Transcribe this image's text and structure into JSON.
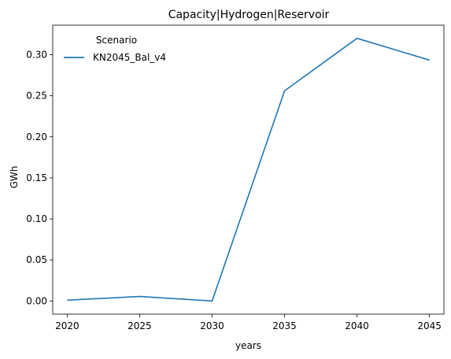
{
  "chart_data": {
    "type": "line",
    "title": "Capacity|Hydrogen|Reservoir",
    "xlabel": "years",
    "ylabel": "GWh",
    "x": [
      2020,
      2025,
      2030,
      2035,
      2040,
      2045
    ],
    "series": [
      {
        "name": "KN2045_Bal_v4",
        "color": "#1f77b4",
        "values": [
          0.001,
          0.0055,
          0.0,
          0.256,
          0.32,
          0.2935
        ]
      }
    ],
    "xticks": [
      "2020",
      "2025",
      "2030",
      "2035",
      "2040",
      "2045"
    ],
    "yticks": [
      "0.00",
      "0.05",
      "0.10",
      "0.15",
      "0.20",
      "0.25",
      "0.30"
    ],
    "ytick_values": [
      0,
      0.05,
      0.1,
      0.15,
      0.2,
      0.25,
      0.3
    ],
    "xlim": [
      2019,
      2046
    ],
    "ylim": [
      -0.016,
      0.336
    ],
    "legend": {
      "title": "Scenario",
      "placement": "top-left"
    },
    "grid": false
  }
}
